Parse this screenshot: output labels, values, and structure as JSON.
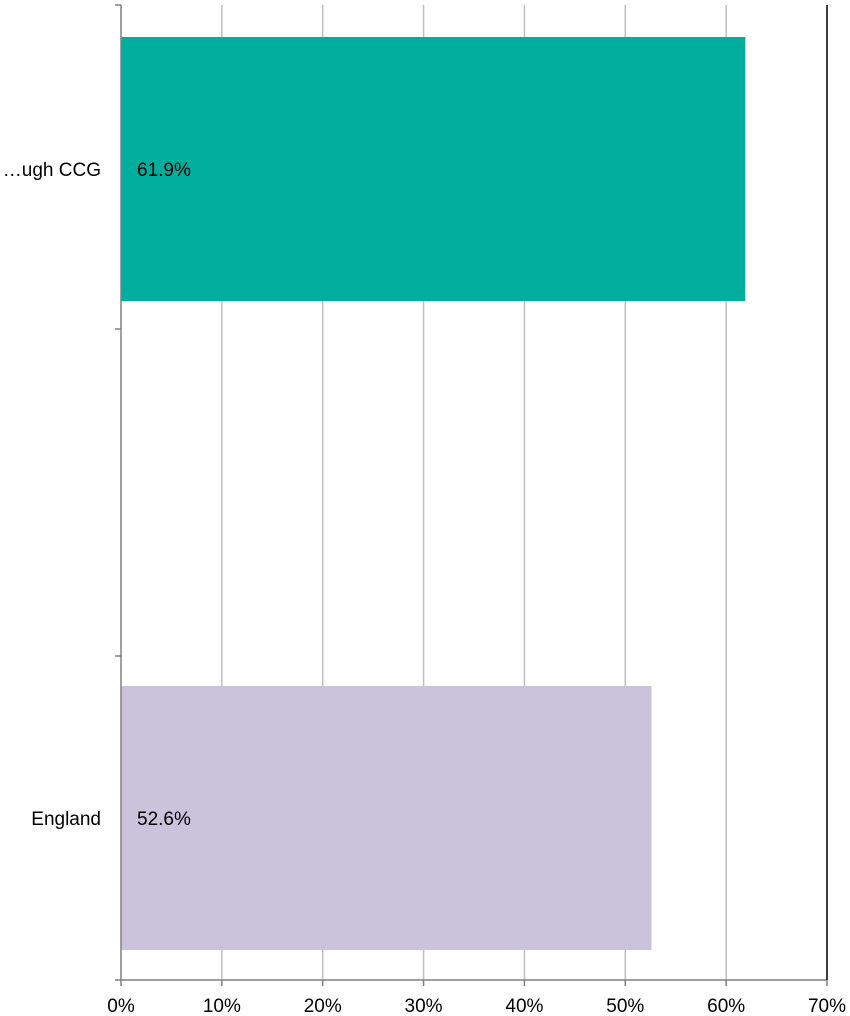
{
  "chart_data": {
    "type": "bar",
    "orientation": "horizontal",
    "categories": [
      "…ugh CCG",
      "England"
    ],
    "series": [
      {
        "values": [
          61.9,
          52.6
        ],
        "labels": [
          "61.9%",
          "52.6%"
        ],
        "colors": [
          "#00AE9D",
          "#CBC2DC"
        ]
      }
    ],
    "xlim": [
      0,
      70
    ],
    "x_ticks": [
      "0%",
      "10%",
      "20%",
      "30%",
      "40%",
      "50%",
      "60%",
      "70%"
    ],
    "grid": true,
    "legend": "none",
    "colors": {
      "gridline": "#BFBFBF",
      "axis": "#808080",
      "frame": "#000000"
    }
  }
}
